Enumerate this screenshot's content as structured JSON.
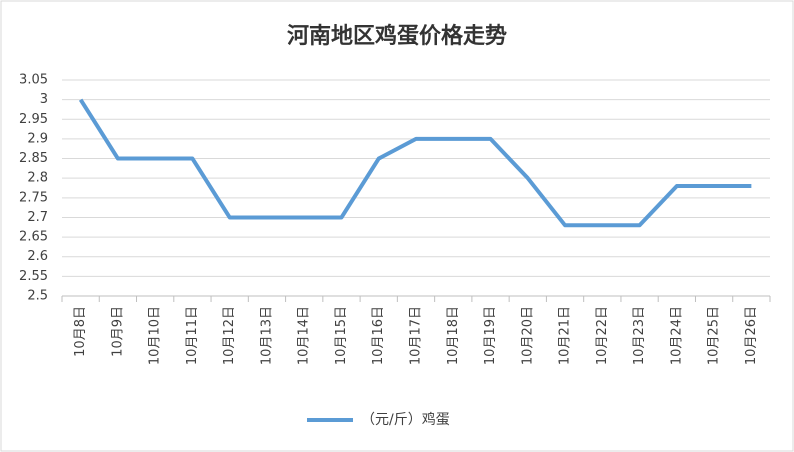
{
  "chart_data": {
    "type": "line",
    "title": "河南地区鸡蛋价格走势",
    "categories": [
      "10月8日",
      "10月9日",
      "10月10日",
      "10月11日",
      "10月12日",
      "10月13日",
      "10月14日",
      "10月15日",
      "10月16日",
      "10月17日",
      "10月18日",
      "10月19日",
      "10月20日",
      "10月21日",
      "10月22日",
      "10月23日",
      "10月24日",
      "10月25日",
      "10月26日"
    ],
    "series": [
      {
        "name": "（元/斤）鸡蛋",
        "color": "#5b9bd5",
        "values": [
          3,
          2.85,
          2.85,
          2.85,
          2.7,
          2.7,
          2.7,
          2.7,
          2.85,
          2.9,
          2.9,
          2.9,
          2.8,
          2.68,
          2.68,
          2.68,
          2.78,
          2.78,
          2.78
        ]
      }
    ],
    "ylim": [
      2.5,
      3.05
    ],
    "yticks": [
      2.5,
      2.55,
      2.6,
      2.65,
      2.7,
      2.75,
      2.8,
      2.85,
      2.9,
      2.95,
      3,
      3.05
    ],
    "grid": true,
    "legend": "bottom"
  }
}
